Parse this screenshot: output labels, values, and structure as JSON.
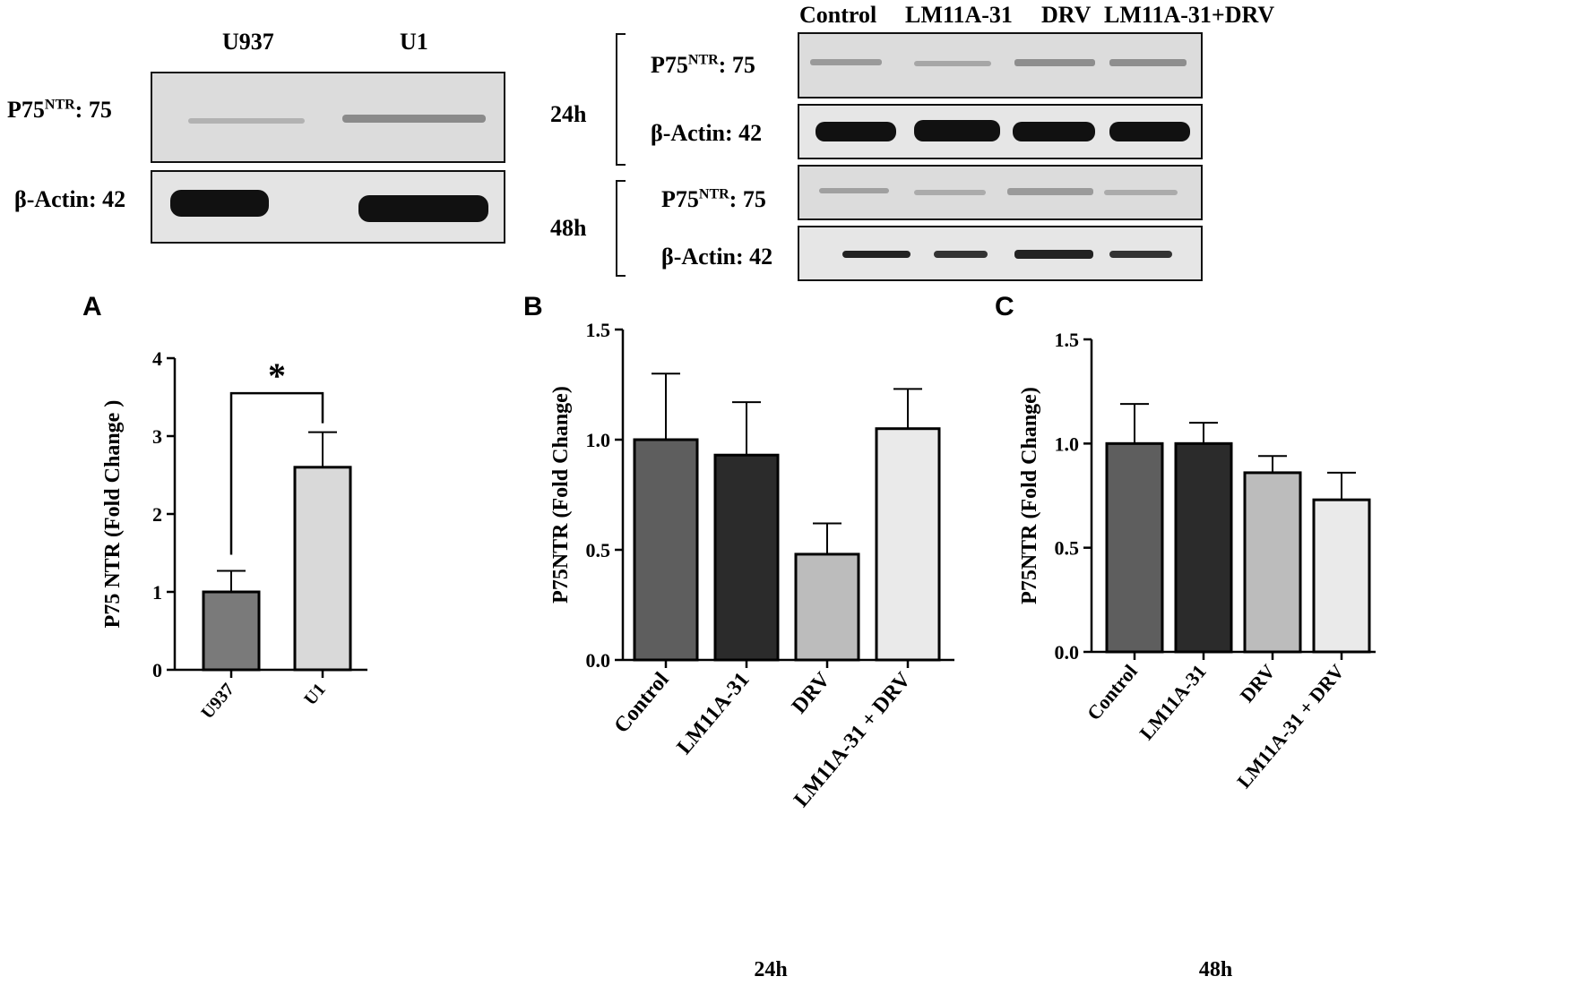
{
  "blot_left": {
    "lanes": [
      "U937",
      "U1"
    ],
    "row1_label": "P75",
    "row1_sup": "NTR",
    "row1_suffix": ": 75",
    "row2_label": "β-Actin: 42"
  },
  "blot_right": {
    "lanes": [
      "Control",
      "LM11A-31",
      "DRV",
      "LM11A-31+DRV"
    ],
    "time1": "24h",
    "time2": "48h",
    "row_label": "P75",
    "row_sup": "NTR",
    "row_suffix": ": 75",
    "actin_label": "β-Actin: 42"
  },
  "panels": {
    "A": "A",
    "B": "B",
    "C": "C"
  },
  "significance": "*",
  "chart_data": [
    {
      "type": "bar",
      "panel": "A",
      "categories": [
        "U937",
        "U1"
      ],
      "values": [
        1.0,
        2.6
      ],
      "errors": [
        0.27,
        0.45
      ],
      "bar_colors": [
        "#7a7a7a",
        "#d9d9d9"
      ],
      "ylabel": "P75 NTR (Fold Change )",
      "ylim": [
        0,
        4
      ],
      "yticks": [
        "0",
        "1",
        "2",
        "3",
        "4"
      ],
      "xlabel": ""
    },
    {
      "type": "bar",
      "panel": "B",
      "categories": [
        "Control",
        "LM11A-31",
        "DRV",
        "LM11A-31 + DRV"
      ],
      "values": [
        1.0,
        0.93,
        0.48,
        1.05
      ],
      "errors": [
        0.3,
        0.24,
        0.14,
        0.18
      ],
      "bar_colors": [
        "#5e5e5e",
        "#2b2b2b",
        "#bcbcbc",
        "#eaeaea"
      ],
      "ylabel": "P75NTR (Fold Change)",
      "ylim": [
        0,
        1.5
      ],
      "yticks": [
        "0.0",
        "0.5",
        "1.0",
        "1.5"
      ],
      "xlabel": "24h"
    },
    {
      "type": "bar",
      "panel": "C",
      "categories": [
        "Control",
        "LM11A-31",
        "DRV",
        "LM11A-31 + DRV"
      ],
      "values": [
        1.0,
        1.0,
        0.86,
        0.73
      ],
      "errors": [
        0.19,
        0.1,
        0.08,
        0.13
      ],
      "bar_colors": [
        "#5e5e5e",
        "#2b2b2b",
        "#bcbcbc",
        "#eaeaea"
      ],
      "ylabel": "P75NTR (Fold Change)",
      "ylim": [
        0,
        1.5
      ],
      "yticks": [
        "0.0",
        "0.5",
        "1.0",
        "1.5"
      ],
      "xlabel": "48h"
    }
  ]
}
